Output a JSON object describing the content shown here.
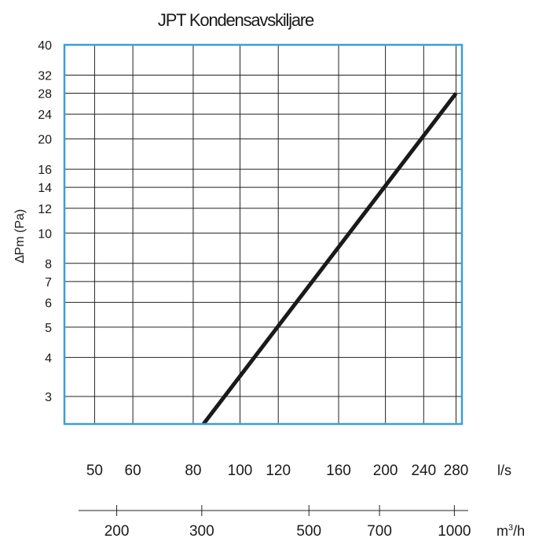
{
  "chart_data": {
    "type": "line",
    "title": "JPT Kondensavskiljare",
    "ylabel": "∆Pm (Pa)",
    "y_scale": "log",
    "x_scale": "log",
    "ylim": [
      2.45,
      40
    ],
    "xlim": [
      43.3,
      288
    ],
    "grid": true,
    "y_ticks": [
      3,
      4,
      5,
      6,
      7,
      8,
      10,
      12,
      14,
      16,
      20,
      24,
      28,
      32,
      40
    ],
    "x_ticks_ls": [
      50,
      60,
      80,
      100,
      120,
      160,
      200,
      240,
      280
    ],
    "x_unit_ls": "l/s",
    "x_ticks_m3h": [
      200,
      300,
      500,
      700,
      1000
    ],
    "x_unit_m3h_base": "m",
    "x_unit_m3h_sup": "3",
    "x_unit_m3h_tail": "/h",
    "series": [
      {
        "x": [
          84,
          280
        ],
        "y": [
          2.45,
          28
        ]
      }
    ],
    "colors": {
      "frame": "#3a9fd8",
      "grid": "#222222",
      "line": "#1a1a1a",
      "text": "#1a1a1a"
    }
  }
}
